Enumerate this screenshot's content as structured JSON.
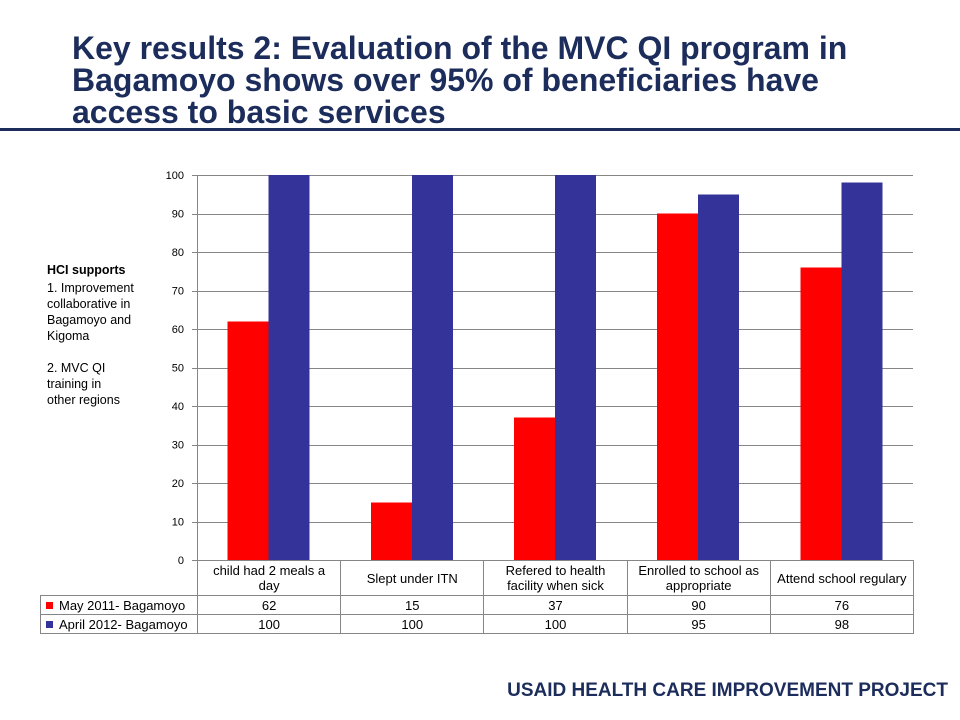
{
  "slide": {
    "title": "Key results 2: Evaluation of the MVC QI program in Bagamoyo shows over 95% of beneficiaries have access to basic services",
    "footer": "USAID HEALTH CARE IMPROVEMENT PROJECT"
  },
  "side_note": {
    "heading": "HCI supports",
    "items": [
      "1. Improvement\ncollaborative in\nBagamoyo and\nKigoma",
      "2. MVC QI\ntraining in\nother regions"
    ]
  },
  "colors": {
    "title": "#1c2d5c",
    "grid": "#868686"
  },
  "chart_data": {
    "type": "bar",
    "categories": [
      "child had 2 meals a day",
      "Slept under ITN",
      "Refered to health facility when sick",
      "Enrolled to school as appropriate",
      "Attend school regulary"
    ],
    "series": [
      {
        "name": "May 2011- Bagamoyo",
        "values": [
          62,
          15,
          37,
          90,
          76
        ],
        "color": "#ff0000"
      },
      {
        "name": "April 2012- Bagamoyo",
        "values": [
          100,
          100,
          100,
          95,
          98
        ],
        "color": "#333399"
      }
    ],
    "ylim": [
      0,
      100
    ],
    "yticks": [
      0,
      10,
      20,
      30,
      40,
      50,
      60,
      70,
      80,
      90,
      100
    ],
    "grid": true,
    "legend": "bottom",
    "data_table": true
  }
}
